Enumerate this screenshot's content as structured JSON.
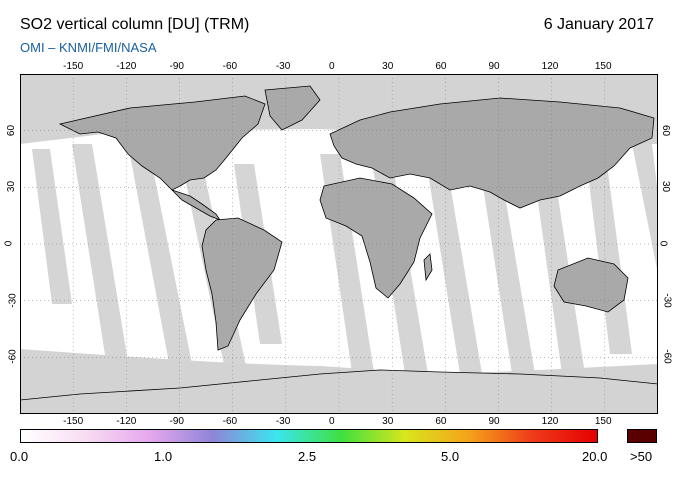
{
  "header": {
    "title": "SO2 vertical column [DU] (TRM)",
    "date": "6 January 2017",
    "subtitle": "OMI  –  KNMI/FMI/NASA"
  },
  "map": {
    "projection": "equirectangular",
    "lon_range": [
      -180,
      180
    ],
    "lat_range": [
      -90,
      90
    ],
    "lon_ticks": [
      "-150",
      "-120",
      "-90",
      "-60",
      "-30",
      "0",
      "30",
      "60",
      "90",
      "120",
      "150"
    ],
    "lat_ticks": [
      "60",
      "30",
      "0",
      "-30",
      "-60"
    ],
    "colors": {
      "land": "#a9a9a9",
      "no_data": "#d3d3d3",
      "ocean_data": "#ffffff",
      "coastline": "#000000"
    }
  },
  "colorbar": {
    "labels": [
      "0.0",
      "1.0",
      "2.5",
      "5.0",
      "20.0",
      ">50"
    ],
    "colors": [
      "#ffffff",
      "#f7ddf2",
      "#e6a8ee",
      "#8f85d8",
      "#3ae6ef",
      "#3fe03f",
      "#d8e61d",
      "#f5a21a",
      "#ee3a1a",
      "#e60000"
    ],
    "overflow_color": "#5a0000"
  }
}
